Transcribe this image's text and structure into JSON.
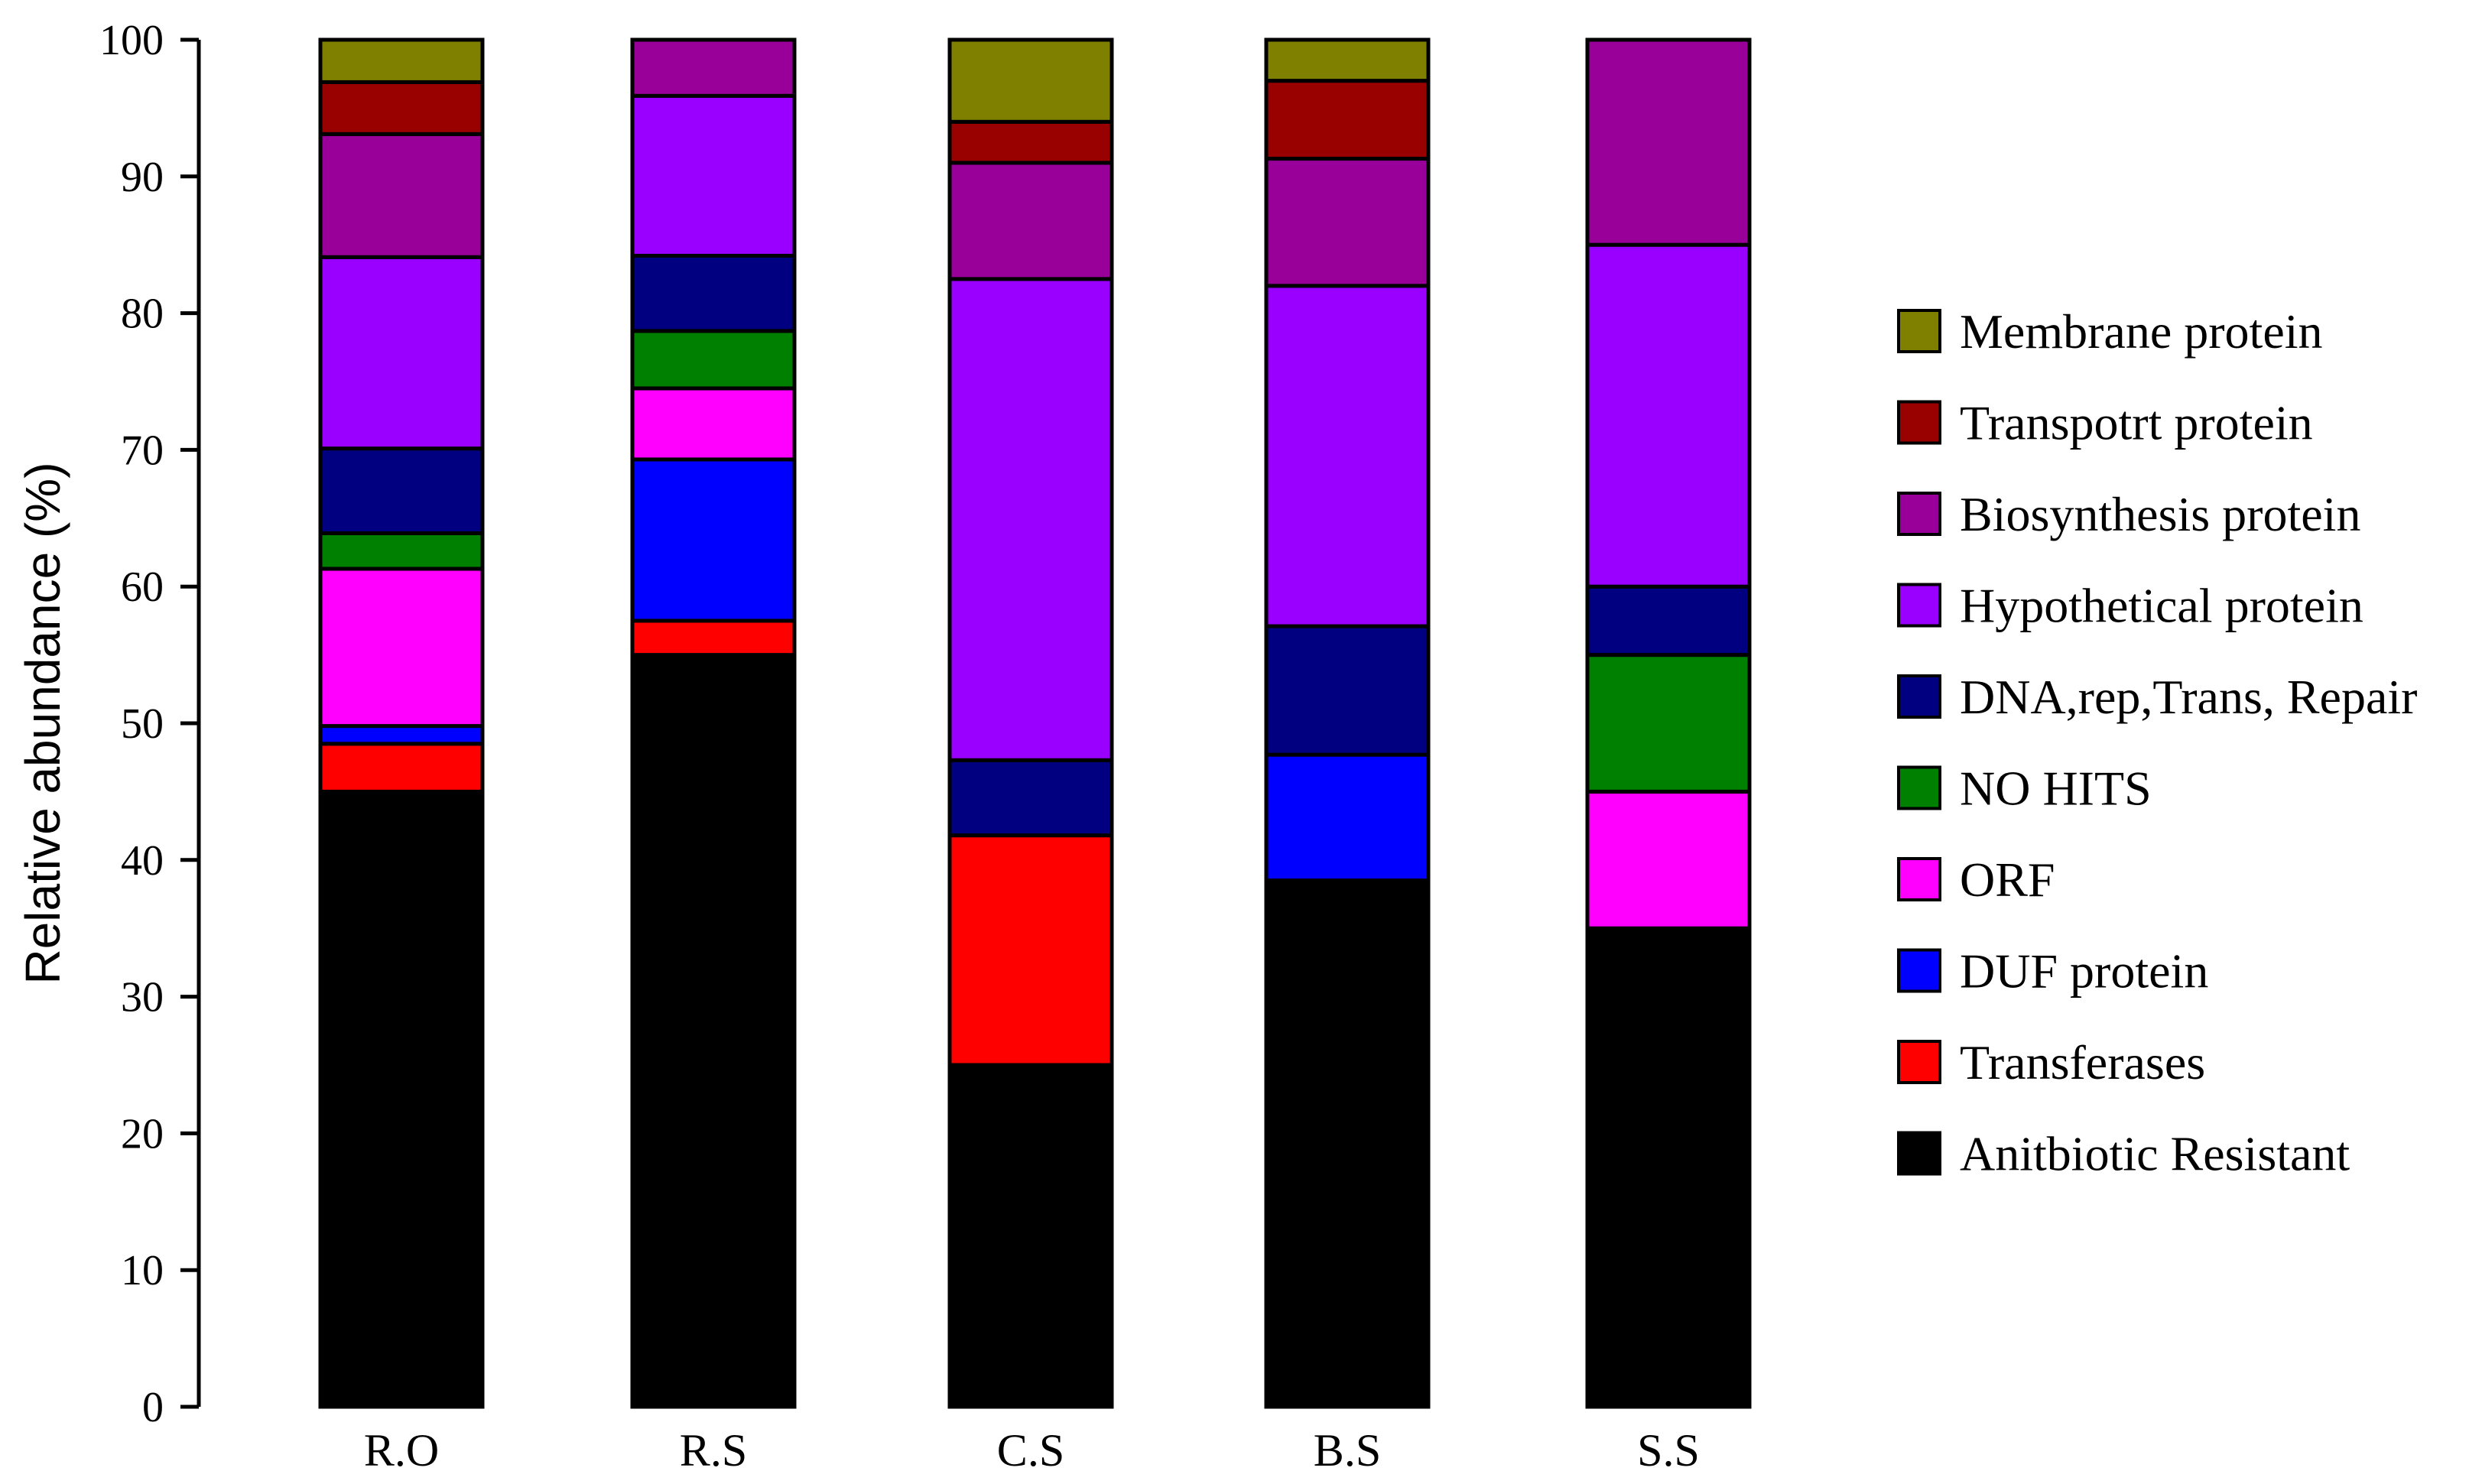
{
  "chart_data": {
    "type": "bar",
    "stacked": true,
    "title": "",
    "xlabel": "",
    "ylabel": "Relative abundance (%)",
    "ylim": [
      0,
      100
    ],
    "yticks": [
      0,
      10,
      20,
      30,
      40,
      50,
      60,
      70,
      80,
      90,
      100
    ],
    "grid": false,
    "legend_position": "right",
    "categories": [
      "R.O",
      "R.S",
      "C.S",
      "B.S",
      "S.S"
    ],
    "series": [
      {
        "name": "Anitbiotic Resistant",
        "color": "#000000",
        "values": [
          45,
          55,
          25,
          38.5,
          35
        ]
      },
      {
        "name": "Transferases",
        "color": "#ff0000",
        "values": [
          3.5,
          2.5,
          16.8,
          0,
          0
        ]
      },
      {
        "name": "DUF protein",
        "color": "#0000ff",
        "values": [
          1.3,
          11.8,
          0,
          9.2,
          0
        ]
      },
      {
        "name": "ORF",
        "color": "#ff00ff",
        "values": [
          11.5,
          5.2,
          0,
          0,
          10
        ]
      },
      {
        "name": "NO HITS",
        "color": "#008000",
        "values": [
          2.6,
          4.2,
          0,
          0,
          10
        ]
      },
      {
        "name": "DNA,rep,Trans, Repair",
        "color": "#000080",
        "values": [
          6.2,
          5.5,
          5.5,
          9.4,
          5
        ]
      },
      {
        "name": "Hypothetical protein",
        "color": "#9900ff",
        "values": [
          14,
          11.7,
          35.2,
          24.9,
          25
        ]
      },
      {
        "name": "Biosynthesis protein",
        "color": "#990099",
        "values": [
          9,
          4.1,
          8.5,
          9.3,
          15
        ]
      },
      {
        "name": "Transpotrt protein",
        "color": "#990000",
        "values": [
          3.8,
          0,
          3,
          5.7,
          0
        ]
      },
      {
        "name": "Membrane protein",
        "color": "#808000",
        "values": [
          3.1,
          0,
          6,
          3,
          0
        ]
      }
    ]
  }
}
